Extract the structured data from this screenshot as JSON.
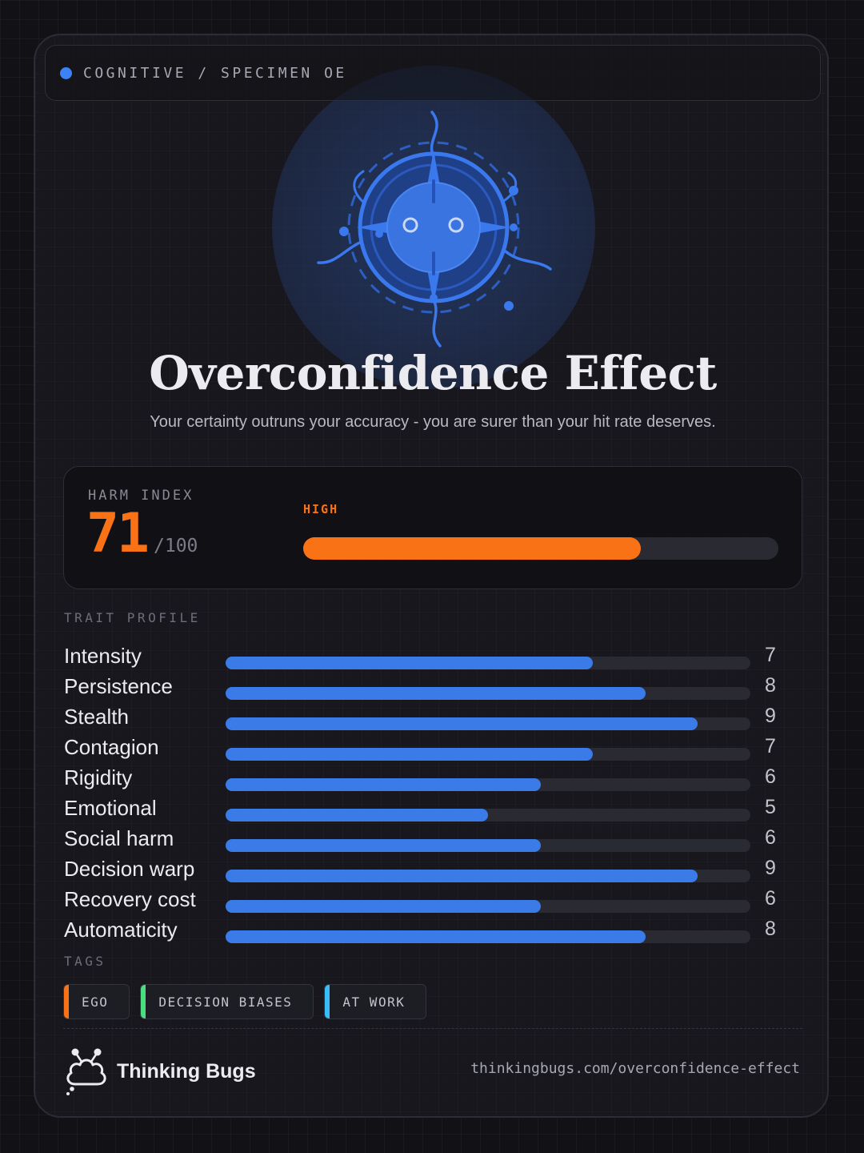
{
  "header": {
    "category": "COGNITIVE / SPECIMEN OE",
    "status_color": "#3b82f6"
  },
  "illustration": {
    "icon": "compass-bug-icon"
  },
  "title": "Overconfidence Effect",
  "subtitle": "Your certainty outruns your accuracy - you are surer than your hit rate deserves.",
  "harm": {
    "label": "HARM INDEX",
    "score": "71",
    "out_of": "/100",
    "level": "HIGH",
    "value": 71,
    "max": 100,
    "color": "#f97316"
  },
  "traits": {
    "label": "TRAIT PROFILE",
    "max": 10,
    "color": "#3b7be8",
    "items": [
      {
        "name": "Intensity",
        "value": 7
      },
      {
        "name": "Persistence",
        "value": 8
      },
      {
        "name": "Stealth",
        "value": 9
      },
      {
        "name": "Contagion",
        "value": 7
      },
      {
        "name": "Rigidity",
        "value": 6
      },
      {
        "name": "Emotional",
        "value": 5
      },
      {
        "name": "Social harm",
        "value": 6
      },
      {
        "name": "Decision warp",
        "value": 9
      },
      {
        "name": "Recovery cost",
        "value": 6
      },
      {
        "name": "Automaticity",
        "value": 8
      }
    ]
  },
  "tags": {
    "label": "TAGS",
    "items": [
      {
        "label": "EGO",
        "color": "#f97316"
      },
      {
        "label": "DECISION BIASES",
        "color": "#4ade80"
      },
      {
        "label": "AT WORK",
        "color": "#38bdf8"
      }
    ]
  },
  "footer": {
    "brand": "Thinking Bugs",
    "logo_icon": "cloud-bug-logo-icon",
    "url": "thinkingbugs.com/overconfidence-effect"
  }
}
